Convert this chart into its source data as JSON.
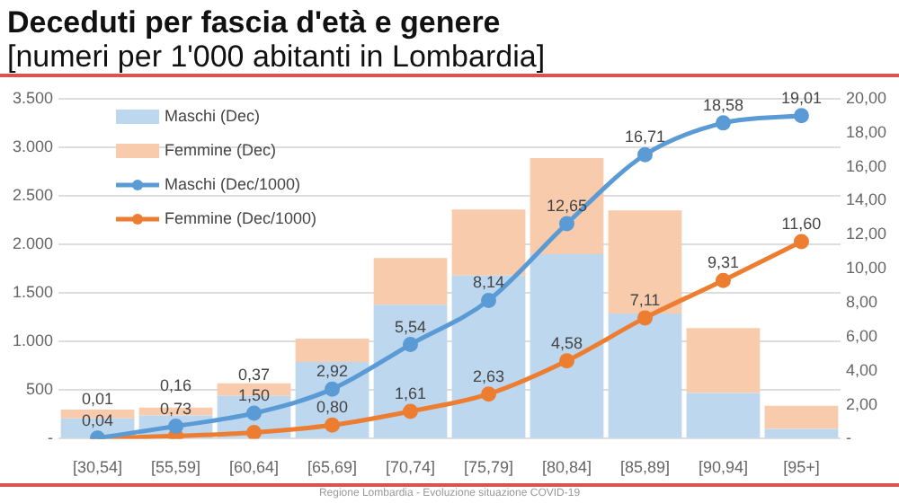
{
  "chart_data": {
    "type": "bar",
    "title": "Deceduti per fascia d'età e genere",
    "subtitle": "[numeri per 1'000 abitanti in Lombardia]",
    "categories": [
      "[30,54]",
      "[55,59]",
      "[60,64]",
      "[65,69]",
      "[70,74]",
      "[75,79]",
      "[80,84]",
      "[85,89]",
      "[90,94]",
      "[95+]"
    ],
    "stacked": true,
    "series": [
      {
        "name": "Maschi (Dec)",
        "color": "#bdd7ee",
        "values": [
          210,
          240,
          440,
          790,
          1380,
          1680,
          1900,
          1290,
          470,
          100
        ]
      },
      {
        "name": "Femmine (Dec)",
        "color": "#f8cbad",
        "values": [
          90,
          80,
          130,
          240,
          480,
          680,
          990,
          1060,
          670,
          240
        ]
      },
      {
        "name": "Maschi (Dec/1000)",
        "type": "line",
        "axis": "y2",
        "color": "#5b9bd5",
        "values": [
          0.04,
          0.73,
          1.5,
          2.92,
          5.54,
          8.14,
          12.65,
          16.71,
          18.58,
          19.01
        ],
        "value_labels": [
          "0,04",
          "0,73",
          "1,50",
          "2,92",
          "5,54",
          "8,14",
          "12,65",
          "16,71",
          "18,58",
          "19,01"
        ]
      },
      {
        "name": "Femmine (Dec/1000)",
        "type": "line",
        "axis": "y2",
        "color": "#ed7d31",
        "values": [
          0.01,
          0.16,
          0.37,
          0.8,
          1.61,
          2.63,
          4.58,
          7.11,
          9.31,
          11.6
        ],
        "value_labels": [
          "0,01",
          "0,16",
          "0,37",
          "0,80",
          "1,61",
          "2,63",
          "4,58",
          "7,11",
          "9,31",
          "11,60"
        ]
      }
    ],
    "ylim": [
      0,
      3500
    ],
    "yticks": [
      {
        "value": 0,
        "label": "-"
      },
      {
        "value": 500,
        "label": "500"
      },
      {
        "value": 1000,
        "label": "1.000"
      },
      {
        "value": 1500,
        "label": "1.500"
      },
      {
        "value": 2000,
        "label": "2.000"
      },
      {
        "value": 2500,
        "label": "2.500"
      },
      {
        "value": 3000,
        "label": "3.000"
      },
      {
        "value": 3500,
        "label": "3.500"
      }
    ],
    "y2lim": [
      0,
      20
    ],
    "y2ticks": [
      {
        "value": 0,
        "label": "-"
      },
      {
        "value": 2,
        "label": "2,00"
      },
      {
        "value": 4,
        "label": "4,00"
      },
      {
        "value": 6,
        "label": "6,00"
      },
      {
        "value": 8,
        "label": "8,00"
      },
      {
        "value": 10,
        "label": "10,00"
      },
      {
        "value": 12,
        "label": "12,00"
      },
      {
        "value": 14,
        "label": "14,00"
      },
      {
        "value": 16,
        "label": "16,00"
      },
      {
        "value": 18,
        "label": "18,00"
      },
      {
        "value": 20,
        "label": "20,00"
      }
    ],
    "grid": "y",
    "legend": "top left",
    "marker": "circle",
    "annotations": [
      "Regione Lombardia - Evoluzione situazione COVID-19"
    ]
  }
}
